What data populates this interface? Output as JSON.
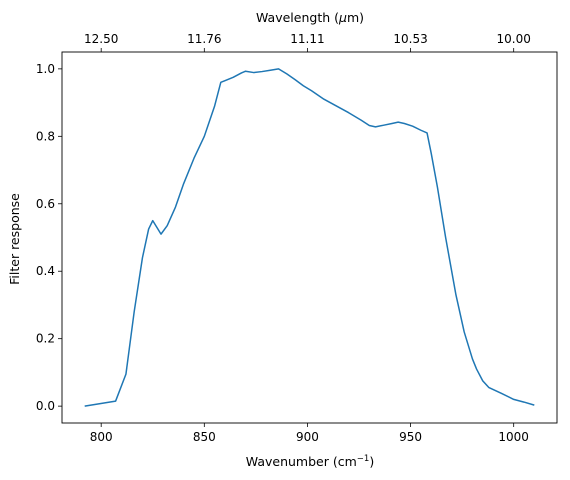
{
  "chart_data": {
    "type": "line",
    "xlabel": "Wavenumber (cm",
    "xlabel_sup": "−1",
    "xlabel_close": ")",
    "ylabel": "Filter response",
    "x2label_pre": "Wavelength (",
    "x2label_mu": "μ",
    "x2label_post": "m)",
    "xlim": [
      781,
      1021
    ],
    "ylim": [
      -0.05,
      1.05
    ],
    "x_ticks": [
      {
        "v": 800,
        "label": "800"
      },
      {
        "v": 850,
        "label": "850"
      },
      {
        "v": 900,
        "label": "900"
      },
      {
        "v": 950,
        "label": "950"
      },
      {
        "v": 1000,
        "label": "1000"
      }
    ],
    "y_ticks": [
      {
        "v": 0.0,
        "label": "0.0"
      },
      {
        "v": 0.2,
        "label": "0.2"
      },
      {
        "v": 0.4,
        "label": "0.4"
      },
      {
        "v": 0.6,
        "label": "0.6"
      },
      {
        "v": 0.8,
        "label": "0.8"
      },
      {
        "v": 1.0,
        "label": "1.0"
      }
    ],
    "x2_ticks": [
      {
        "v": 800,
        "label": "12.50"
      },
      {
        "v": 850,
        "label": "11.76"
      },
      {
        "v": 900,
        "label": "11.11"
      },
      {
        "v": 950,
        "label": "10.53"
      },
      {
        "v": 1000,
        "label": "10.00"
      }
    ],
    "series": [
      {
        "color": "#1f77b4",
        "x": [
          792,
          807,
          812,
          816,
          820,
          823,
          825,
          827,
          829,
          832,
          836,
          840,
          845,
          850,
          855,
          858,
          860,
          864,
          868,
          870,
          874,
          878,
          882,
          886,
          890,
          894,
          898,
          902,
          908,
          914,
          920,
          926,
          930,
          933,
          937,
          941,
          944,
          947,
          951,
          955,
          958,
          960,
          963,
          967,
          972,
          976,
          980,
          982,
          985,
          988,
          994,
          1000,
          1005,
          1010
        ],
        "y": [
          0.0,
          0.015,
          0.095,
          0.28,
          0.44,
          0.525,
          0.55,
          0.53,
          0.51,
          0.535,
          0.59,
          0.66,
          0.735,
          0.8,
          0.89,
          0.96,
          0.965,
          0.975,
          0.988,
          0.993,
          0.989,
          0.992,
          0.996,
          1.0,
          0.985,
          0.968,
          0.95,
          0.935,
          0.91,
          0.89,
          0.87,
          0.848,
          0.832,
          0.828,
          0.833,
          0.838,
          0.842,
          0.838,
          0.83,
          0.818,
          0.81,
          0.75,
          0.65,
          0.5,
          0.33,
          0.22,
          0.14,
          0.11,
          0.075,
          0.055,
          0.038,
          0.02,
          0.012,
          0.003
        ]
      }
    ]
  }
}
